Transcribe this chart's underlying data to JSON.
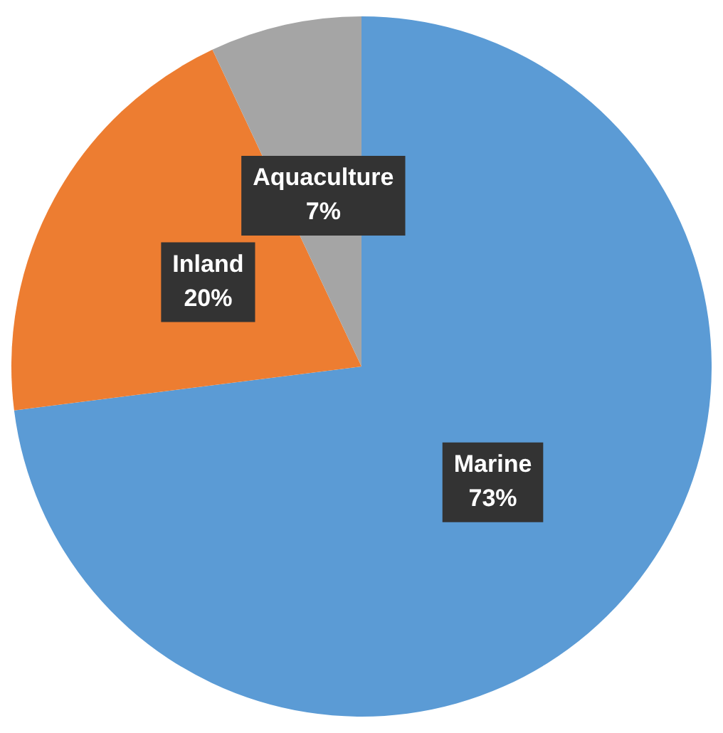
{
  "chart_data": {
    "type": "pie",
    "categories": [
      "Marine",
      "Inland",
      "Aquaculture"
    ],
    "values": [
      73,
      20,
      7
    ],
    "colors": [
      "#5b9bd5",
      "#ed7d31",
      "#a5a5a5"
    ],
    "value_labels": [
      "73%",
      "20%",
      "7%"
    ],
    "legend": false
  }
}
